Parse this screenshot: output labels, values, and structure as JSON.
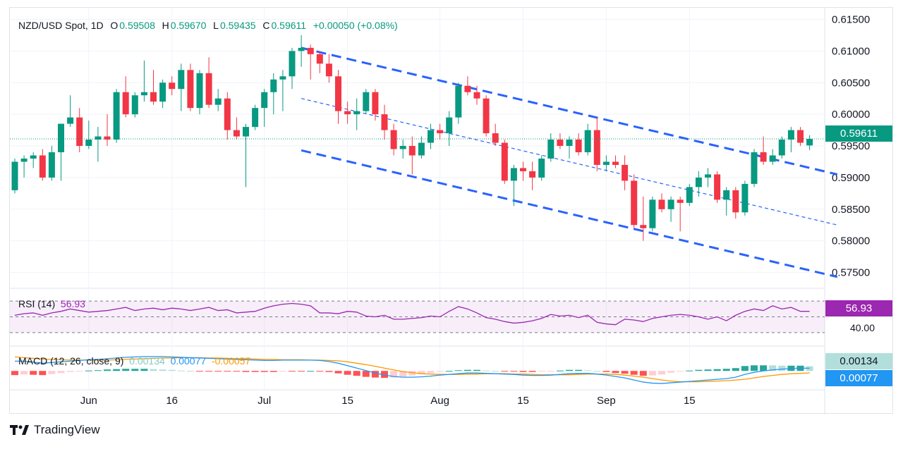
{
  "header": {
    "symbol": "NZD/USD Spot, 1D",
    "o_label": "O",
    "o_value": "0.59508",
    "h_label": "H",
    "h_value": "0.59670",
    "l_label": "L",
    "l_value": "0.59435",
    "c_label": "C",
    "c_value": "0.59611",
    "change": "+0.00050 (+0.08%)"
  },
  "colors": {
    "up": "#089981",
    "down": "#f23645",
    "channel": "#2962ff",
    "rsi": "#9c27b0",
    "macd": "#2196f3",
    "signal": "#ff9800",
    "grid": "#f0f3fa"
  },
  "price_badge": "0.59611",
  "rsi": {
    "label": "RSI (14)",
    "value": "56.93",
    "level_label": "40.00"
  },
  "macd": {
    "label": "MACD (12, 26, close, 9)",
    "hist": "0.00134",
    "macd": "0.00077",
    "signal": "-0.00057",
    "badge_hist": "0.00134",
    "badge_macd": "0.00077"
  },
  "branding": {
    "name": "TradingView",
    "logo_icon": "tradingview-logo-icon"
  },
  "chart_data": {
    "type": "candlestick",
    "symbol": "NZD/USD Spot",
    "interval": "1D",
    "y_ticks": [
      "0.61500",
      "0.61000",
      "0.60500",
      "0.60000",
      "0.59500",
      "0.59000",
      "0.58500",
      "0.58000",
      "0.57500"
    ],
    "ylim": [
      0.5725,
      0.6155
    ],
    "x_ticks": [
      {
        "label": "Jun",
        "index": 8
      },
      {
        "label": "16",
        "index": 17
      },
      {
        "label": "Jul",
        "index": 27
      },
      {
        "label": "15",
        "index": 36
      },
      {
        "label": "Aug",
        "index": 46
      },
      {
        "label": "15",
        "index": 55
      },
      {
        "label": "Sep",
        "index": 64
      },
      {
        "label": "15",
        "index": 73
      }
    ],
    "last_price": 0.59611,
    "candles": [
      [
        0.588,
        0.593,
        0.5875,
        0.5925
      ],
      [
        0.5925,
        0.5935,
        0.59,
        0.593
      ],
      [
        0.593,
        0.594,
        0.5915,
        0.5935
      ],
      [
        0.5935,
        0.5945,
        0.5895,
        0.59
      ],
      [
        0.59,
        0.595,
        0.5895,
        0.594
      ],
      [
        0.594,
        0.5985,
        0.5895,
        0.5985
      ],
      [
        0.5985,
        0.603,
        0.598,
        0.5995
      ],
      [
        0.5995,
        0.601,
        0.594,
        0.595
      ],
      [
        0.595,
        0.599,
        0.5945,
        0.596
      ],
      [
        0.596,
        0.598,
        0.5925,
        0.5965
      ],
      [
        0.5965,
        0.6,
        0.595,
        0.596
      ],
      [
        0.596,
        0.604,
        0.5955,
        0.6035
      ],
      [
        0.6035,
        0.606,
        0.5995,
        0.6
      ],
      [
        0.6,
        0.6035,
        0.5995,
        0.603
      ],
      [
        0.603,
        0.6085,
        0.602,
        0.6035
      ],
      [
        0.6035,
        0.607,
        0.6015,
        0.602
      ],
      [
        0.602,
        0.6055,
        0.601,
        0.605
      ],
      [
        0.605,
        0.606,
        0.603,
        0.604
      ],
      [
        0.604,
        0.608,
        0.6005,
        0.607
      ],
      [
        0.607,
        0.608,
        0.6005,
        0.601
      ],
      [
        0.601,
        0.607,
        0.6,
        0.6065
      ],
      [
        0.6065,
        0.609,
        0.601,
        0.6015
      ],
      [
        0.6015,
        0.604,
        0.6005,
        0.6025
      ],
      [
        0.6025,
        0.6035,
        0.596,
        0.5975
      ],
      [
        0.5975,
        0.5995,
        0.596,
        0.5965
      ],
      [
        0.5965,
        0.5985,
        0.5885,
        0.598
      ],
      [
        0.598,
        0.6015,
        0.5975,
        0.601
      ],
      [
        0.601,
        0.604,
        0.598,
        0.6035
      ],
      [
        0.6035,
        0.6065,
        0.6,
        0.6055
      ],
      [
        0.6055,
        0.607,
        0.6005,
        0.606
      ],
      [
        0.606,
        0.6105,
        0.604,
        0.61
      ],
      [
        0.61,
        0.6125,
        0.6075,
        0.6105
      ],
      [
        0.6105,
        0.611,
        0.6055,
        0.6095
      ],
      [
        0.6095,
        0.61,
        0.6065,
        0.608
      ],
      [
        0.608,
        0.6095,
        0.605,
        0.606
      ],
      [
        0.606,
        0.607,
        0.5985,
        0.6005
      ],
      [
        0.6005,
        0.602,
        0.5985,
        0.6
      ],
      [
        0.6,
        0.6025,
        0.5975,
        0.6005
      ],
      [
        0.6005,
        0.604,
        0.6,
        0.6035
      ],
      [
        0.6035,
        0.604,
        0.599,
        0.6
      ],
      [
        0.6,
        0.6015,
        0.596,
        0.5975
      ],
      [
        0.5975,
        0.5985,
        0.5935,
        0.5945
      ],
      [
        0.5945,
        0.596,
        0.593,
        0.595
      ],
      [
        0.595,
        0.5965,
        0.5905,
        0.5935
      ],
      [
        0.5935,
        0.5965,
        0.593,
        0.5955
      ],
      [
        0.5955,
        0.5985,
        0.5945,
        0.5975
      ],
      [
        0.5975,
        0.5985,
        0.596,
        0.597
      ],
      [
        0.597,
        0.6005,
        0.595,
        0.5995
      ],
      [
        0.5995,
        0.605,
        0.5985,
        0.6045
      ],
      [
        0.6045,
        0.606,
        0.603,
        0.6035
      ],
      [
        0.6035,
        0.6045,
        0.6015,
        0.6025
      ],
      [
        0.6025,
        0.603,
        0.5965,
        0.597
      ],
      [
        0.597,
        0.5985,
        0.595,
        0.5955
      ],
      [
        0.5955,
        0.596,
        0.589,
        0.5895
      ],
      [
        0.5895,
        0.592,
        0.5855,
        0.5915
      ],
      [
        0.5915,
        0.5925,
        0.5895,
        0.591
      ],
      [
        0.591,
        0.5925,
        0.588,
        0.59
      ],
      [
        0.59,
        0.5935,
        0.5895,
        0.593
      ],
      [
        0.593,
        0.597,
        0.5925,
        0.596
      ],
      [
        0.596,
        0.597,
        0.5945,
        0.595
      ],
      [
        0.595,
        0.5965,
        0.593,
        0.596
      ],
      [
        0.596,
        0.597,
        0.5935,
        0.594
      ],
      [
        0.594,
        0.5985,
        0.5935,
        0.5975
      ],
      [
        0.5975,
        0.5995,
        0.591,
        0.592
      ],
      [
        0.592,
        0.5935,
        0.591,
        0.5925
      ],
      [
        0.5925,
        0.5935,
        0.5915,
        0.592
      ],
      [
        0.592,
        0.5935,
        0.588,
        0.5895
      ],
      [
        0.5895,
        0.5905,
        0.582,
        0.5825
      ],
      [
        0.5825,
        0.587,
        0.58,
        0.582
      ],
      [
        0.582,
        0.587,
        0.5815,
        0.5865
      ],
      [
        0.5865,
        0.5875,
        0.5845,
        0.585
      ],
      [
        0.585,
        0.587,
        0.583,
        0.5865
      ],
      [
        0.5865,
        0.587,
        0.5815,
        0.586
      ],
      [
        0.586,
        0.589,
        0.5855,
        0.5885
      ],
      [
        0.5885,
        0.591,
        0.587,
        0.59
      ],
      [
        0.59,
        0.5915,
        0.5885,
        0.5905
      ],
      [
        0.5905,
        0.591,
        0.586,
        0.5865
      ],
      [
        0.5865,
        0.5885,
        0.584,
        0.588
      ],
      [
        0.588,
        0.5885,
        0.5835,
        0.5845
      ],
      [
        0.5845,
        0.5895,
        0.584,
        0.589
      ],
      [
        0.589,
        0.5945,
        0.5885,
        0.594
      ],
      [
        0.594,
        0.5965,
        0.592,
        0.5925
      ],
      [
        0.5925,
        0.5945,
        0.592,
        0.5935
      ],
      [
        0.5935,
        0.5965,
        0.593,
        0.596
      ],
      [
        0.596,
        0.598,
        0.594,
        0.5975
      ],
      [
        0.5975,
        0.598,
        0.595,
        0.5955
      ],
      [
        0.59508,
        0.5967,
        0.59435,
        0.59611
      ]
    ],
    "channel_upper": [
      [
        31,
        0.6105
      ],
      [
        89,
        0.5905
      ]
    ],
    "channel_lower": [
      [
        31,
        0.5943
      ],
      [
        89,
        0.5743
      ]
    ],
    "channel_mid": [
      [
        31,
        0.6025
      ],
      [
        89,
        0.5825
      ]
    ],
    "rsi_range": [
      20,
      80
    ],
    "rsi_levels": [
      70,
      50,
      30
    ],
    "rsi_values": [
      52,
      54,
      55,
      52,
      55,
      57,
      60,
      58,
      56,
      57,
      58,
      60,
      62,
      58,
      60,
      61,
      59,
      61,
      60,
      58,
      60,
      62,
      58,
      59,
      55,
      56,
      57,
      61,
      64,
      66,
      67,
      66,
      64,
      55,
      55,
      54,
      57,
      56,
      51,
      50,
      52,
      47,
      47,
      48,
      49,
      51,
      50,
      57,
      63,
      60,
      55,
      49,
      47,
      44,
      42,
      43,
      45,
      48,
      53,
      51,
      52,
      49,
      52,
      43,
      41,
      40,
      47,
      46,
      44,
      48,
      50,
      52,
      53,
      52,
      50,
      47,
      50,
      45,
      52,
      57,
      60,
      58,
      64,
      60,
      62,
      57,
      57
    ],
    "macd_range": [
      -0.005,
      0.0065
    ],
    "macd_values": [
      0.0028,
      0.0028,
      0.0025,
      0.0022,
      0.0024,
      0.0026,
      0.0028,
      0.003,
      0.0032,
      0.0033,
      0.0035,
      0.0037,
      0.0039,
      0.004,
      0.0041,
      0.0041,
      0.0041,
      0.004,
      0.0039,
      0.0038,
      0.0037,
      0.0036,
      0.0035,
      0.0034,
      0.0033,
      0.0032,
      0.0031,
      0.003,
      0.003,
      0.0031,
      0.0031,
      0.0031,
      0.0031,
      0.003,
      0.0027,
      0.0022,
      0.0015,
      0.0008,
      0.0001,
      -0.0006,
      -0.0012,
      -0.0016,
      -0.0018,
      -0.0018,
      -0.0017,
      -0.0015,
      -0.0012,
      -0.001,
      -0.0008,
      -0.0006,
      -0.0006,
      -0.0007,
      -0.0008,
      -0.0009,
      -0.001,
      -0.0012,
      -0.0013,
      -0.0013,
      -0.0012,
      -0.001,
      -0.0008,
      -0.0007,
      -0.0007,
      -0.0009,
      -0.0012,
      -0.0016,
      -0.002,
      -0.0026,
      -0.0032,
      -0.0035,
      -0.0036,
      -0.0034,
      -0.0032,
      -0.003,
      -0.0028,
      -0.0026,
      -0.0024,
      -0.0022,
      -0.0018,
      -0.001,
      -0.0004,
      0.0,
      0.0003,
      0.0005,
      0.0007,
      0.0008,
      0.00077
    ],
    "signal_values": [
      0.004,
      0.0038,
      0.0036,
      0.0034,
      0.0033,
      0.0032,
      0.0031,
      0.0031,
      0.0031,
      0.0031,
      0.0031,
      0.0032,
      0.0033,
      0.0034,
      0.0035,
      0.0036,
      0.0037,
      0.0037,
      0.0038,
      0.0038,
      0.0038,
      0.0037,
      0.0037,
      0.0036,
      0.0035,
      0.0035,
      0.0034,
      0.0033,
      0.0033,
      0.0032,
      0.0032,
      0.0032,
      0.0031,
      0.0031,
      0.003,
      0.0029,
      0.0026,
      0.0022,
      0.0018,
      0.0013,
      0.0008,
      0.0003,
      -0.0002,
      -0.0005,
      -0.0008,
      -0.0009,
      -0.001,
      -0.001,
      -0.001,
      -0.0009,
      -0.0009,
      -0.0008,
      -0.0008,
      -0.0008,
      -0.0009,
      -0.0009,
      -0.001,
      -0.0011,
      -0.0011,
      -0.0011,
      -0.0011,
      -0.001,
      -0.0009,
      -0.0009,
      -0.0009,
      -0.001,
      -0.0012,
      -0.0015,
      -0.0018,
      -0.0022,
      -0.0026,
      -0.0029,
      -0.0031,
      -0.0031,
      -0.0031,
      -0.003,
      -0.0029,
      -0.0028,
      -0.0026,
      -0.0024,
      -0.002,
      -0.0016,
      -0.0013,
      -0.001,
      -0.0008,
      -0.0007,
      -0.00057
    ]
  }
}
